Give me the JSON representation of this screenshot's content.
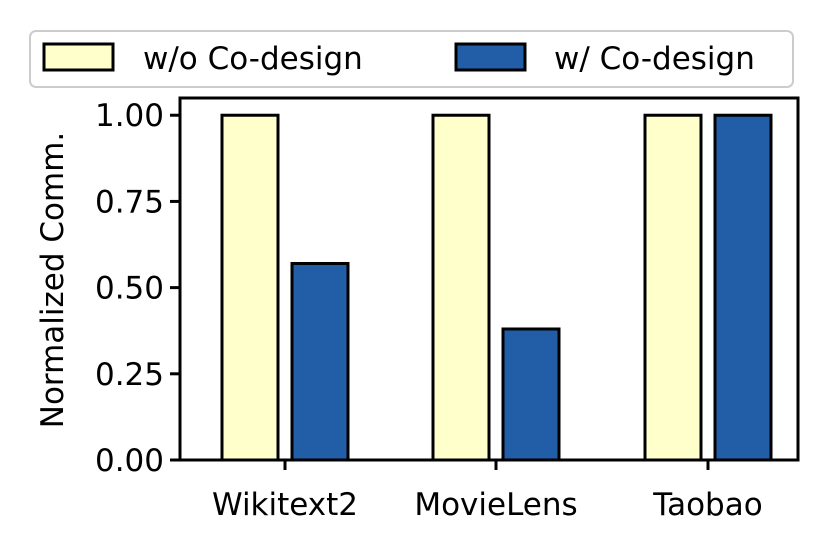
{
  "chart_data": {
    "type": "bar",
    "categories": [
      "Wikitext2",
      "MovieLens",
      "Taobao"
    ],
    "series": [
      {
        "name": "w/o Co-design",
        "color": "#FFFFCC",
        "values": [
          1.0,
          1.0,
          1.0
        ]
      },
      {
        "name": "w/ Co-design",
        "color": "#225EA8",
        "values": [
          0.57,
          0.38,
          1.0
        ]
      }
    ],
    "title": "",
    "xlabel": "",
    "ylabel": "Normalized Comm.",
    "ylim": [
      0,
      1.05
    ],
    "yticks": [
      {
        "value": 0.0,
        "label": "0.00"
      },
      {
        "value": 0.25,
        "label": "0.25"
      },
      {
        "value": 0.5,
        "label": "0.50"
      },
      {
        "value": 0.75,
        "label": "0.75"
      },
      {
        "value": 1.0,
        "label": "1.00"
      }
    ],
    "grid": false,
    "legend_position": "top"
  }
}
